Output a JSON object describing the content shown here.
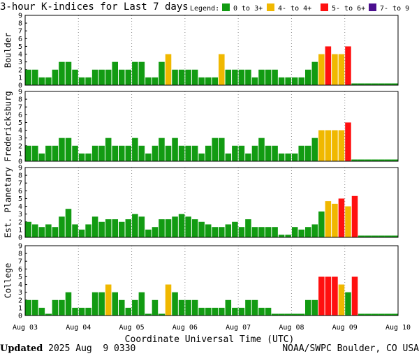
{
  "chart_data": {
    "type": "bar",
    "title": "3-hour K-indices for Last 7 days",
    "legend": {
      "label": "Legend:",
      "items": [
        {
          "name": "0 to 3+",
          "color": "#129b12"
        },
        {
          "name": "4- to 4+",
          "color": "#f0b800"
        },
        {
          "name": "5- to 6+",
          "color": "#ff1010"
        },
        {
          "name": "7- to 9",
          "color": "#4b0f8f"
        }
      ]
    },
    "x_tick_labels": [
      "Aug 03",
      "Aug 04",
      "Aug 05",
      "Aug 06",
      "Aug 07",
      "Aug 08",
      "Aug 09",
      "Aug 10"
    ],
    "xlabel": "Coordinate Universal Time (UTC)",
    "ylim": [
      0,
      9
    ],
    "y_ticks": [
      0,
      1,
      2,
      3,
      4,
      5,
      6,
      7,
      8,
      9
    ],
    "bins_per_day": 8,
    "days": 7,
    "grid": true,
    "series": [
      {
        "name": "Boulder",
        "values": [
          2,
          2,
          1,
          1,
          2,
          3,
          3,
          2,
          1,
          1,
          2,
          2,
          2,
          3,
          2,
          2,
          3,
          3,
          1,
          1,
          3,
          4,
          2,
          2,
          2,
          2,
          1,
          1,
          1,
          4,
          2,
          2,
          2,
          2,
          1,
          2,
          2,
          2,
          1,
          1,
          1,
          1,
          2,
          3,
          4,
          5,
          4,
          4,
          5,
          0,
          0,
          0,
          0,
          0,
          0,
          0
        ]
      },
      {
        "name": "Fredericksburg",
        "values": [
          2,
          2,
          1,
          2,
          2,
          3,
          3,
          2,
          1,
          1,
          2,
          2,
          3,
          2,
          2,
          2,
          3,
          2,
          1,
          2,
          3,
          2,
          3,
          2,
          2,
          2,
          1,
          2,
          3,
          3,
          1,
          2,
          2,
          1,
          2,
          3,
          2,
          2,
          1,
          1,
          1,
          2,
          2,
          3,
          4,
          4,
          4,
          4,
          5,
          0,
          0,
          0,
          0,
          0,
          0,
          0
        ]
      },
      {
        "name": "Est. Planetary",
        "values": [
          2,
          1.67,
          1.33,
          1.67,
          1.33,
          2.67,
          3.67,
          1.67,
          1,
          1.67,
          2.67,
          2,
          2.33,
          2.33,
          2,
          2.33,
          3,
          2.67,
          1,
          1.33,
          2.33,
          2.33,
          2.67,
          3,
          2.67,
          2.33,
          2,
          1.67,
          1.33,
          1.33,
          1.67,
          2,
          1.33,
          2.33,
          1.33,
          1.33,
          1.33,
          1.33,
          0.33,
          0.33,
          1.33,
          1,
          1.33,
          1.67,
          3.33,
          4.67,
          4.33,
          5,
          4,
          5.33,
          0,
          0,
          0,
          0,
          0,
          0
        ]
      },
      {
        "name": "College",
        "values": [
          2,
          2,
          1,
          0,
          2,
          2,
          3,
          1,
          1,
          1,
          3,
          3,
          4,
          3,
          2,
          1,
          2,
          3,
          0,
          2,
          0,
          4,
          3,
          2,
          2,
          2,
          1,
          1,
          1,
          1,
          2,
          1,
          1,
          2,
          2,
          1,
          1,
          0,
          0,
          0,
          0,
          0,
          2,
          2,
          5,
          5,
          5,
          4,
          3,
          5,
          0,
          0,
          0,
          0,
          0,
          0
        ]
      }
    ]
  },
  "footer": {
    "updated_label": "Updated",
    "updated_value": "2025 Aug  9 0330",
    "source": "NOAA/SWPC Boulder, CO USA"
  }
}
